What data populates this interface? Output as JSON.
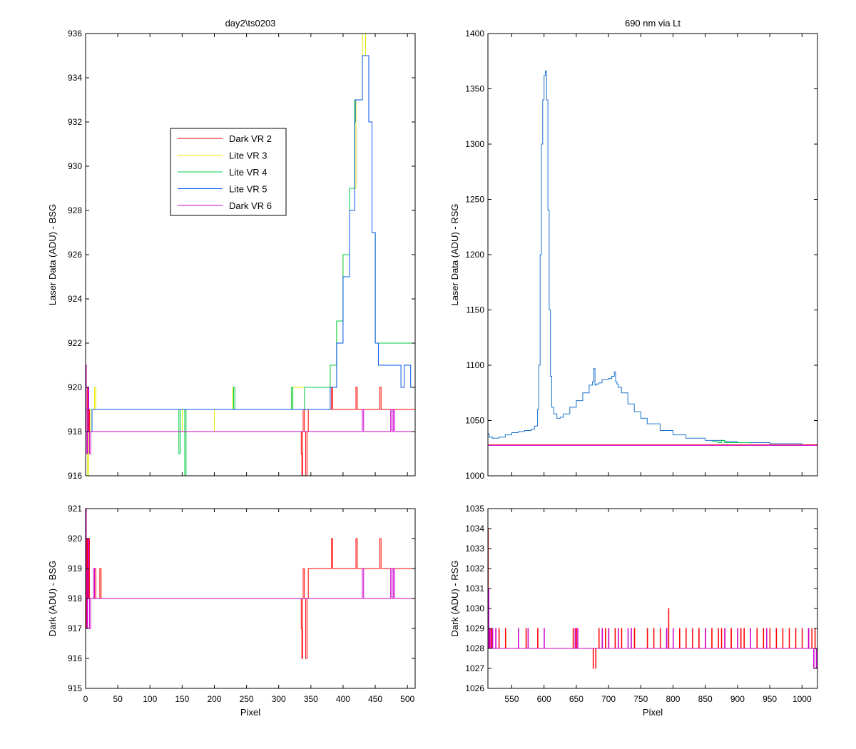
{
  "colors": {
    "dark_vr2": "#ff0000",
    "lite_vr3": "#e6e600",
    "lite_vr4": "#00cc44",
    "lite_vr5": "#0055ee",
    "dark_vr6": "#cc00cc",
    "spectrum": "#1a73cc"
  },
  "chart_data": [
    {
      "id": "top-left",
      "type": "line",
      "title": "day2\\ts0203",
      "xlabel": "",
      "ylabel": "Laser Data (ADU) - BSG",
      "xlim": [
        0,
        512
      ],
      "ylim": [
        916,
        936
      ],
      "xticks": [
        0,
        50,
        100,
        150,
        200,
        250,
        300,
        350,
        400,
        450,
        500
      ],
      "yticks": [
        916,
        918,
        920,
        922,
        924,
        926,
        928,
        930,
        932,
        934,
        936
      ],
      "show_xticklabels": false,
      "legend": {
        "placement": "upper-left-inside",
        "entries": [
          "Dark VR 2",
          "Lite VR 3",
          "Lite VR 4",
          "Lite VR 5",
          "Dark VR 6"
        ]
      },
      "series": [
        {
          "name": "Dark VR 2",
          "color_key": "dark_vr2",
          "x": [
            0,
            1,
            2,
            3,
            4,
            5,
            6,
            8,
            10,
            15,
            20,
            300,
            330,
            335,
            336,
            337,
            338,
            340,
            342,
            344,
            346,
            350,
            355,
            360,
            380,
            382,
            384,
            386,
            418,
            420,
            422,
            455,
            457,
            459,
            512
          ],
          "y": [
            921,
            918,
            917,
            920,
            918,
            919,
            918,
            918,
            918,
            918,
            918,
            918,
            918,
            917,
            916,
            918,
            919,
            918,
            916,
            918,
            919,
            919,
            919,
            919,
            919,
            920,
            919,
            919,
            919,
            920,
            919,
            919,
            920,
            919,
            919
          ]
        },
        {
          "name": "Lite VR 3",
          "color_key": "lite_vr3",
          "x": [
            0,
            3,
            5,
            8,
            10,
            14,
            16,
            20,
            100,
            150,
            200,
            228,
            230,
            232,
            300,
            320,
            340,
            360,
            380,
            390,
            400,
            410,
            420,
            430,
            435,
            440,
            445,
            450,
            455,
            460,
            470,
            480,
            490,
            500,
            510,
            512
          ],
          "y": [
            919,
            916,
            918,
            919,
            919,
            920,
            919,
            919,
            919,
            918,
            919,
            920,
            919,
            919,
            919,
            920,
            920,
            920,
            921,
            923,
            926,
            929,
            933,
            936,
            935,
            932,
            927,
            922,
            922,
            922,
            922,
            922,
            922,
            922,
            922,
            922
          ]
        },
        {
          "name": "Lite VR 4",
          "color_key": "lite_vr4",
          "x": [
            0,
            5,
            10,
            50,
            100,
            143,
            145,
            147,
            152,
            154,
            156,
            200,
            228,
            230,
            232,
            300,
            318,
            320,
            322,
            340,
            360,
            380,
            390,
            400,
            410,
            418,
            420,
            430,
            435,
            440,
            445,
            450,
            455,
            460,
            480,
            500,
            512
          ],
          "y": [
            919,
            918,
            919,
            919,
            919,
            919,
            917,
            919,
            919,
            916,
            919,
            919,
            919,
            920,
            919,
            919,
            919,
            920,
            919,
            920,
            920,
            921,
            923,
            926,
            929,
            933,
            933,
            935,
            935,
            932,
            927,
            922,
            922,
            922,
            922,
            922,
            922
          ]
        },
        {
          "name": "Lite VR 5",
          "color_key": "lite_vr5",
          "x": [
            0,
            5,
            10,
            50,
            100,
            150,
            200,
            250,
            300,
            340,
            360,
            380,
            390,
            400,
            410,
            418,
            419,
            430,
            435,
            440,
            445,
            450,
            455,
            460,
            470,
            480,
            490,
            495,
            500,
            505,
            510,
            512
          ],
          "y": [
            919,
            918,
            919,
            919,
            919,
            919,
            919,
            919,
            919,
            919,
            919,
            920,
            922,
            925,
            928,
            932,
            933,
            935,
            935,
            932,
            927,
            922,
            921,
            921,
            921,
            921,
            920,
            921,
            921,
            920,
            920,
            923
          ]
        },
        {
          "name": "Dark VR 6",
          "color_key": "dark_vr6",
          "x": [
            0,
            1,
            2,
            3,
            4,
            5,
            6,
            8,
            10,
            12,
            15,
            100,
            200,
            300,
            400,
            428,
            430,
            432,
            472,
            474,
            476,
            478,
            480,
            500,
            512
          ],
          "y": [
            921,
            918,
            917,
            919,
            920,
            918,
            917,
            918,
            918,
            918,
            918,
            918,
            918,
            918,
            918,
            918,
            919,
            918,
            918,
            919,
            918,
            919,
            918,
            918,
            918
          ]
        }
      ]
    },
    {
      "id": "top-right",
      "type": "line",
      "title": "690 nm via Lt",
      "xlabel": "",
      "ylabel": "Laser Data (ADU) - RSG",
      "xlim": [
        513,
        1024
      ],
      "ylim": [
        1000,
        1400
      ],
      "xticks": [
        550,
        600,
        650,
        700,
        750,
        800,
        850,
        900,
        950,
        1000
      ],
      "yticks": [
        1000,
        1050,
        1100,
        1150,
        1200,
        1250,
        1300,
        1350,
        1400
      ],
      "show_xticklabels": false,
      "series": [
        {
          "name": "Lite VR 5",
          "color_key": "spectrum",
          "x": [
            513,
            515,
            520,
            530,
            540,
            550,
            560,
            570,
            580,
            585,
            590,
            592,
            594,
            596,
            598,
            600,
            602,
            604,
            606,
            608,
            610,
            612,
            615,
            620,
            625,
            630,
            640,
            650,
            660,
            670,
            675,
            677,
            679,
            681,
            685,
            690,
            700,
            705,
            709,
            711,
            713,
            715,
            720,
            730,
            740,
            750,
            760,
            780,
            800,
            820,
            850,
            880,
            900,
            950,
            1000,
            1024
          ],
          "y": [
            1038,
            1035,
            1034,
            1035,
            1037,
            1039,
            1040,
            1041,
            1042,
            1045,
            1060,
            1100,
            1200,
            1300,
            1340,
            1362,
            1366,
            1340,
            1240,
            1150,
            1090,
            1062,
            1056,
            1052,
            1053,
            1056,
            1062,
            1068,
            1075,
            1082,
            1085,
            1097,
            1082,
            1083,
            1084,
            1087,
            1088,
            1090,
            1094,
            1085,
            1083,
            1080,
            1075,
            1065,
            1058,
            1052,
            1047,
            1041,
            1037,
            1034,
            1032,
            1031,
            1030,
            1029,
            1028,
            1028
          ]
        },
        {
          "name": "Lite VR 4",
          "color_key": "lite_vr4",
          "x": [
            860,
            870,
            875,
            880,
            890,
            900,
            920
          ],
          "y": [
            1031,
            1030,
            1032,
            1030,
            1030,
            1030,
            1029
          ]
        },
        {
          "name": "Dark VR 2",
          "color_key": "dark_vr2",
          "x": [
            513,
            1024
          ],
          "y": [
            1028,
            1028
          ]
        },
        {
          "name": "Dark VR 6",
          "color_key": "dark_vr6",
          "x": [
            513,
            1024
          ],
          "y": [
            1027.5,
            1027.5
          ]
        }
      ]
    },
    {
      "id": "bottom-left",
      "type": "line",
      "title": "",
      "xlabel": "Pixel",
      "ylabel": "Dark (ADU) - BSG",
      "xlim": [
        0,
        512
      ],
      "ylim": [
        915,
        921
      ],
      "xticks": [
        0,
        50,
        100,
        150,
        200,
        250,
        300,
        350,
        400,
        450,
        500
      ],
      "yticks": [
        915,
        916,
        917,
        918,
        919,
        920,
        921
      ],
      "show_xticklabels": true,
      "series": [
        {
          "name": "Dark VR 2",
          "color_key": "dark_vr2",
          "x": [
            0,
            1,
            2,
            3,
            4,
            5,
            6,
            8,
            12,
            14,
            16,
            20,
            22,
            24,
            26,
            300,
            330,
            335,
            336,
            337,
            338,
            340,
            342,
            344,
            346,
            350,
            380,
            382,
            384,
            386,
            418,
            420,
            422,
            455,
            457,
            459,
            512
          ],
          "y": [
            921,
            917,
            920,
            918,
            919,
            920,
            918,
            918,
            918,
            919,
            918,
            918,
            919,
            918,
            918,
            918,
            918,
            917,
            916,
            918,
            919,
            918,
            916,
            918,
            919,
            919,
            919,
            920,
            919,
            919,
            919,
            920,
            919,
            919,
            920,
            919,
            919
          ]
        },
        {
          "name": "Dark VR 6",
          "color_key": "dark_vr6",
          "x": [
            0,
            1,
            2,
            3,
            4,
            5,
            6,
            8,
            10,
            12,
            14,
            100,
            200,
            300,
            400,
            428,
            430,
            432,
            472,
            474,
            476,
            478,
            480,
            500,
            512
          ],
          "y": [
            921,
            918,
            917,
            919,
            920,
            918,
            917,
            918,
            918,
            919,
            918,
            918,
            918,
            918,
            918,
            918,
            919,
            918,
            918,
            919,
            918,
            919,
            918,
            918,
            918
          ]
        }
      ]
    },
    {
      "id": "bottom-right",
      "type": "line",
      "title": "",
      "xlabel": "Pixel",
      "ylabel": "Dark (ADU) - RSG",
      "xlim": [
        513,
        1024
      ],
      "ylim": [
        1026,
        1035
      ],
      "xticks": [
        550,
        600,
        650,
        700,
        750,
        800,
        850,
        900,
        950,
        1000
      ],
      "yticks": [
        1026,
        1027,
        1028,
        1029,
        1030,
        1031,
        1032,
        1033,
        1034,
        1035
      ],
      "show_xticklabels": true,
      "series": [
        {
          "name": "Dark VR 2",
          "color_key": "dark_vr2",
          "baseline": 1028,
          "spikes_x": [
            513,
            515,
            518,
            530,
            540,
            572,
            590,
            645,
            650,
            676,
            680,
            685,
            690,
            695,
            700,
            710,
            720,
            740,
            760,
            770,
            780,
            790,
            793,
            800,
            810,
            820,
            830,
            840,
            850,
            860,
            870,
            875,
            880,
            890,
            900,
            905,
            910,
            920,
            930,
            940,
            950,
            960,
            970,
            980,
            990,
            1000,
            1010,
            1015,
            1020
          ],
          "spikes_y": [
            1034,
            1029,
            1029,
            1029,
            1029,
            1029,
            1029,
            1029,
            1029,
            1027,
            1027,
            1029,
            1029,
            1029,
            1029,
            1029,
            1029,
            1029,
            1029,
            1029,
            1029,
            1029,
            1030,
            1029,
            1029,
            1029,
            1029,
            1029,
            1029,
            1029,
            1029,
            1029,
            1029,
            1029,
            1029,
            1029,
            1029,
            1029,
            1029,
            1029,
            1029,
            1029,
            1029,
            1029,
            1029,
            1029,
            1029,
            1029,
            1029
          ]
        },
        {
          "name": "Dark VR 6",
          "color_key": "dark_vr6",
          "baseline": 1028,
          "spikes_x": [
            514,
            516,
            520,
            525,
            560,
            575,
            600,
            648,
            652,
            690,
            700,
            715,
            730,
            735,
            790,
            800,
            850,
            880,
            900,
            920,
            945,
            1010,
            1018,
            1022
          ],
          "spikes_y": [
            1031,
            1029,
            1029,
            1029,
            1029,
            1029,
            1029,
            1029,
            1029,
            1029,
            1029,
            1029,
            1029,
            1029,
            1029,
            1029,
            1029,
            1029,
            1029,
            1029,
            1029,
            1029,
            1027,
            1027
          ]
        }
      ]
    }
  ]
}
